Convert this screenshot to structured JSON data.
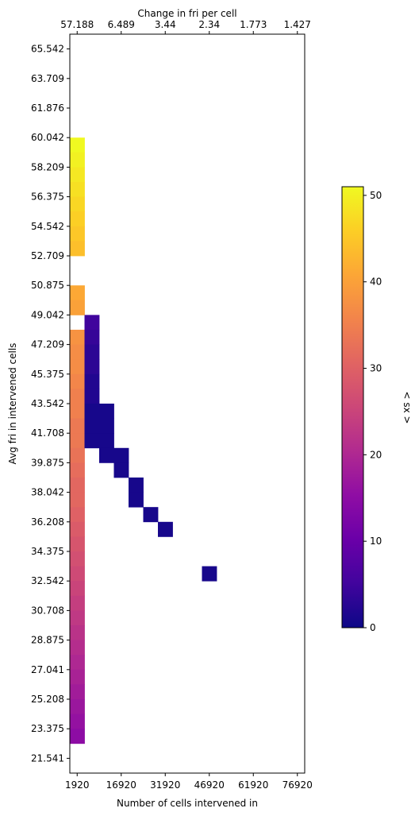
{
  "chart_data": {
    "type": "heatmap",
    "xlabel": "Number of cells intervened in",
    "ylabel": "Avg fri in intervened cells",
    "top_xlabel": "Change in fri per cell",
    "colorbar_label": "< sx >",
    "colormap": "plasma",
    "x_ticks": [
      "1920",
      "16920",
      "31920",
      "46920",
      "61920",
      "76920"
    ],
    "top_x_ticks": [
      "57.188",
      "6.489",
      "3.44",
      "2.34",
      "1.773",
      "1.427"
    ],
    "y_ticks": [
      "65.542",
      "63.709",
      "61.876",
      "60.042",
      "58.209",
      "56.375",
      "54.542",
      "52.709",
      "50.875",
      "49.042",
      "47.209",
      "45.375",
      "43.542",
      "41.708",
      "39.875",
      "38.042",
      "36.208",
      "34.375",
      "32.542",
      "30.708",
      "28.875",
      "27.041",
      "25.208",
      "23.375",
      "21.541"
    ],
    "colorbar_ticks": [
      0,
      10,
      20,
      30,
      40,
      50
    ],
    "colorbar_range": [
      0,
      51
    ],
    "x_range": [
      0,
      16
    ],
    "y_range": [
      20.624,
      66.459
    ],
    "cells": [
      {
        "x": 0,
        "y": 59.584,
        "value": 51
      },
      {
        "x": 0,
        "y": 58.667,
        "value": 50
      },
      {
        "x": 0,
        "y": 57.75,
        "value": 49
      },
      {
        "x": 0,
        "y": 56.833,
        "value": 48
      },
      {
        "x": 0,
        "y": 55.917,
        "value": 47
      },
      {
        "x": 0,
        "y": 55.0,
        "value": 46
      },
      {
        "x": 0,
        "y": 54.084,
        "value": 45
      },
      {
        "x": 0,
        "y": 53.167,
        "value": 44
      },
      {
        "x": 0,
        "y": 50.417,
        "value": 41
      },
      {
        "x": 0,
        "y": 49.5,
        "value": 40
      },
      {
        "x": 0,
        "y": 47.667,
        "value": 38
      },
      {
        "x": 0,
        "y": 46.75,
        "value": 37
      },
      {
        "x": 0,
        "y": 45.834,
        "value": 37
      },
      {
        "x": 0,
        "y": 44.917,
        "value": 36
      },
      {
        "x": 0,
        "y": 44.0,
        "value": 35
      },
      {
        "x": 0,
        "y": 43.084,
        "value": 35
      },
      {
        "x": 0,
        "y": 42.167,
        "value": 34
      },
      {
        "x": 0,
        "y": 41.25,
        "value": 34
      },
      {
        "x": 0,
        "y": 40.334,
        "value": 33
      },
      {
        "x": 0,
        "y": 39.417,
        "value": 32
      },
      {
        "x": 0,
        "y": 38.5,
        "value": 31
      },
      {
        "x": 0,
        "y": 37.584,
        "value": 31
      },
      {
        "x": 0,
        "y": 36.667,
        "value": 30
      },
      {
        "x": 0,
        "y": 35.75,
        "value": 29
      },
      {
        "x": 0,
        "y": 34.834,
        "value": 28
      },
      {
        "x": 0,
        "y": 33.917,
        "value": 27
      },
      {
        "x": 0,
        "y": 33.0,
        "value": 26
      },
      {
        "x": 0,
        "y": 32.084,
        "value": 25
      },
      {
        "x": 0,
        "y": 31.167,
        "value": 24
      },
      {
        "x": 0,
        "y": 30.25,
        "value": 23
      },
      {
        "x": 0,
        "y": 29.334,
        "value": 22
      },
      {
        "x": 0,
        "y": 28.417,
        "value": 21
      },
      {
        "x": 0,
        "y": 27.5,
        "value": 20
      },
      {
        "x": 0,
        "y": 26.583,
        "value": 19
      },
      {
        "x": 0,
        "y": 25.667,
        "value": 18
      },
      {
        "x": 0,
        "y": 24.75,
        "value": 17
      },
      {
        "x": 0,
        "y": 23.833,
        "value": 16
      },
      {
        "x": 0,
        "y": 22.917,
        "value": 15
      },
      {
        "x": 1,
        "y": 48.584,
        "value": 5
      },
      {
        "x": 1,
        "y": 47.667,
        "value": 4
      },
      {
        "x": 1,
        "y": 46.75,
        "value": 3
      },
      {
        "x": 1,
        "y": 45.834,
        "value": 3
      },
      {
        "x": 1,
        "y": 44.917,
        "value": 2
      },
      {
        "x": 1,
        "y": 44.0,
        "value": 2
      },
      {
        "x": 1,
        "y": 43.084,
        "value": 1
      },
      {
        "x": 1,
        "y": 42.167,
        "value": 1
      },
      {
        "x": 1,
        "y": 41.25,
        "value": 1
      },
      {
        "x": 2,
        "y": 43.084,
        "value": 1
      },
      {
        "x": 2,
        "y": 42.167,
        "value": 1
      },
      {
        "x": 2,
        "y": 41.25,
        "value": 1
      },
      {
        "x": 2,
        "y": 40.334,
        "value": 1
      },
      {
        "x": 3,
        "y": 40.334,
        "value": 1
      },
      {
        "x": 3,
        "y": 39.417,
        "value": 1
      },
      {
        "x": 4,
        "y": 38.5,
        "value": 1
      },
      {
        "x": 4,
        "y": 37.584,
        "value": 1
      },
      {
        "x": 5,
        "y": 36.667,
        "value": 1
      },
      {
        "x": 6,
        "y": 35.75,
        "value": 1
      },
      {
        "x": 9,
        "y": 32.999,
        "value": 1
      }
    ]
  }
}
